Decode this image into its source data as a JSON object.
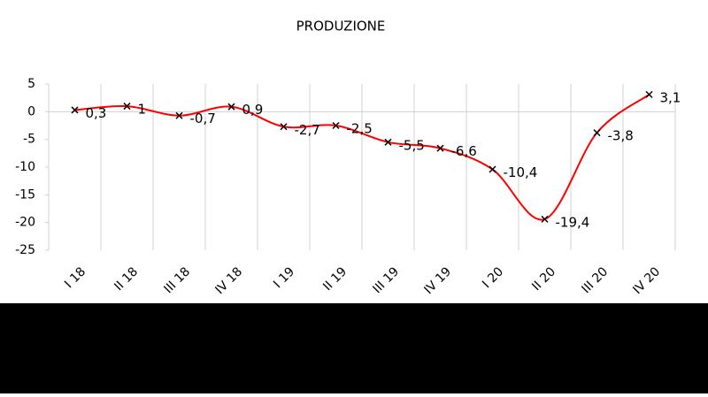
{
  "chart_data": {
    "type": "line",
    "title": "PRODUZIONE",
    "categories": [
      "I 18",
      "II 18",
      "III 18",
      "IV 18",
      "I 19",
      "II 19",
      "III 19",
      "IV 19",
      "I 20",
      "II 20",
      "III 20",
      "IV 20"
    ],
    "series": [
      {
        "name": "PRODUZIONE",
        "color": "#ff0000",
        "values": [
          0.3,
          1,
          -0.7,
          0.9,
          -2.7,
          -2.5,
          -5.5,
          -6.6,
          -10.4,
          -19.4,
          -3.8,
          3.1
        ],
        "value_labels": [
          "0,3",
          "1",
          "-0,7",
          "0,9",
          "-2,7",
          "-2,5",
          "-5,5",
          "-6,6",
          "-10,4",
          "-19,4",
          "-3,8",
          "3,1"
        ]
      }
    ],
    "ylim": [
      -25,
      5
    ],
    "yticks": [
      -25,
      -20,
      -15,
      -10,
      -5,
      0,
      5
    ],
    "smooth": true,
    "grid": true
  }
}
